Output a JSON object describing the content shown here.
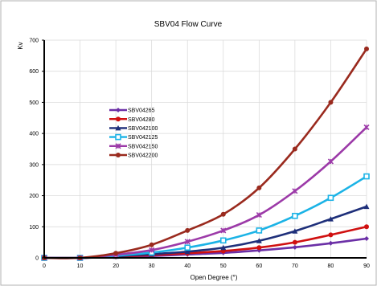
{
  "chart_data": {
    "type": "line",
    "title": "SBV04 Flow Curve",
    "xlabel": "Open Degree (°)",
    "ylabel": "Kv",
    "xlim": [
      0,
      90
    ],
    "ylim": [
      0,
      700
    ],
    "x_ticks": [
      0,
      10,
      20,
      30,
      40,
      50,
      60,
      70,
      80,
      90
    ],
    "y_ticks": [
      0,
      100,
      200,
      300,
      400,
      500,
      600,
      700
    ],
    "grid": true,
    "legend_position": "center-left",
    "x": [
      0,
      10,
      20,
      30,
      40,
      50,
      60,
      70,
      80,
      90
    ],
    "series": [
      {
        "name": "SBV04265",
        "color": "#6b2fa6",
        "marker": "diamond",
        "values": [
          0,
          0,
          3,
          6,
          11,
          16,
          24,
          34,
          47,
          62
        ]
      },
      {
        "name": "SBV04280",
        "color": "#d01010",
        "marker": "circle",
        "values": [
          0,
          0,
          4,
          9,
          15,
          22,
          33,
          50,
          74,
          100
        ]
      },
      {
        "name": "SBV042100",
        "color": "#1e2f7a",
        "marker": "triangle",
        "values": [
          0,
          0,
          5,
          12,
          20,
          33,
          55,
          86,
          125,
          165
        ]
      },
      {
        "name": "SBV042125",
        "color": "#1bb3e6",
        "marker": "square",
        "values": [
          0,
          0,
          7,
          17,
          33,
          56,
          88,
          135,
          193,
          262
        ]
      },
      {
        "name": "SBV042150",
        "color": "#9c3aa8",
        "marker": "x",
        "values": [
          0,
          0,
          10,
          25,
          52,
          88,
          138,
          215,
          310,
          420
        ]
      },
      {
        "name": "SBV042200",
        "color": "#9a2a1e",
        "marker": "circle",
        "values": [
          0,
          0,
          15,
          42,
          88,
          140,
          225,
          350,
          500,
          672
        ]
      }
    ]
  }
}
